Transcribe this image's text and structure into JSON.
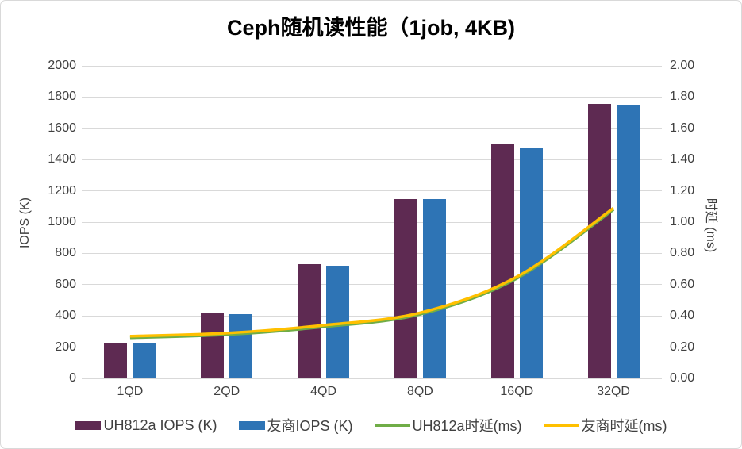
{
  "chart_data": {
    "type": "bar",
    "subtype": "combo-bar-line-dual-axis",
    "title": "Ceph随机读性能（1job, 4KB)",
    "categories": [
      "1QD",
      "2QD",
      "4QD",
      "8QD",
      "16QD",
      "32QD"
    ],
    "bar_series": [
      {
        "name": "UH812a IOPS (K)",
        "color": "#5E2A52",
        "axis": "left",
        "values": [
          230,
          420,
          730,
          1150,
          1500,
          1755
        ]
      },
      {
        "name": "友商IOPS (K)",
        "color": "#2E74B5",
        "axis": "left",
        "values": [
          226,
          413,
          723,
          1148,
          1470,
          1750
        ]
      }
    ],
    "line_series": [
      {
        "name": "UH812a时延(ms)",
        "color": "#70AD47",
        "axis": "right",
        "values": [
          0.26,
          0.28,
          0.33,
          0.41,
          0.64,
          1.08
        ]
      },
      {
        "name": "友商时延(ms)",
        "color": "#FFC000",
        "axis": "right",
        "values": [
          0.27,
          0.29,
          0.34,
          0.42,
          0.65,
          1.09
        ]
      }
    ],
    "left_axis": {
      "label": "IOPS (K)",
      "min": 0,
      "max": 2000,
      "step": 200,
      "ticks": [
        "0",
        "200",
        "400",
        "600",
        "800",
        "1000",
        "1200",
        "1400",
        "1600",
        "1800",
        "2000"
      ]
    },
    "right_axis": {
      "label": "时延 (ms)",
      "min": 0.0,
      "max": 2.0,
      "step": 0.2,
      "ticks": [
        "0.00",
        "0.20",
        "0.40",
        "0.60",
        "0.80",
        "1.00",
        "1.20",
        "1.40",
        "1.60",
        "1.80",
        "2.00"
      ]
    },
    "grid": true,
    "legend_position": "bottom",
    "colors": {
      "gridline": "#D9D9D9",
      "frame_border": "#D9D9D9",
      "axis_text": "#404040",
      "title_text": "#000000",
      "background": "#FFFFFF"
    }
  }
}
